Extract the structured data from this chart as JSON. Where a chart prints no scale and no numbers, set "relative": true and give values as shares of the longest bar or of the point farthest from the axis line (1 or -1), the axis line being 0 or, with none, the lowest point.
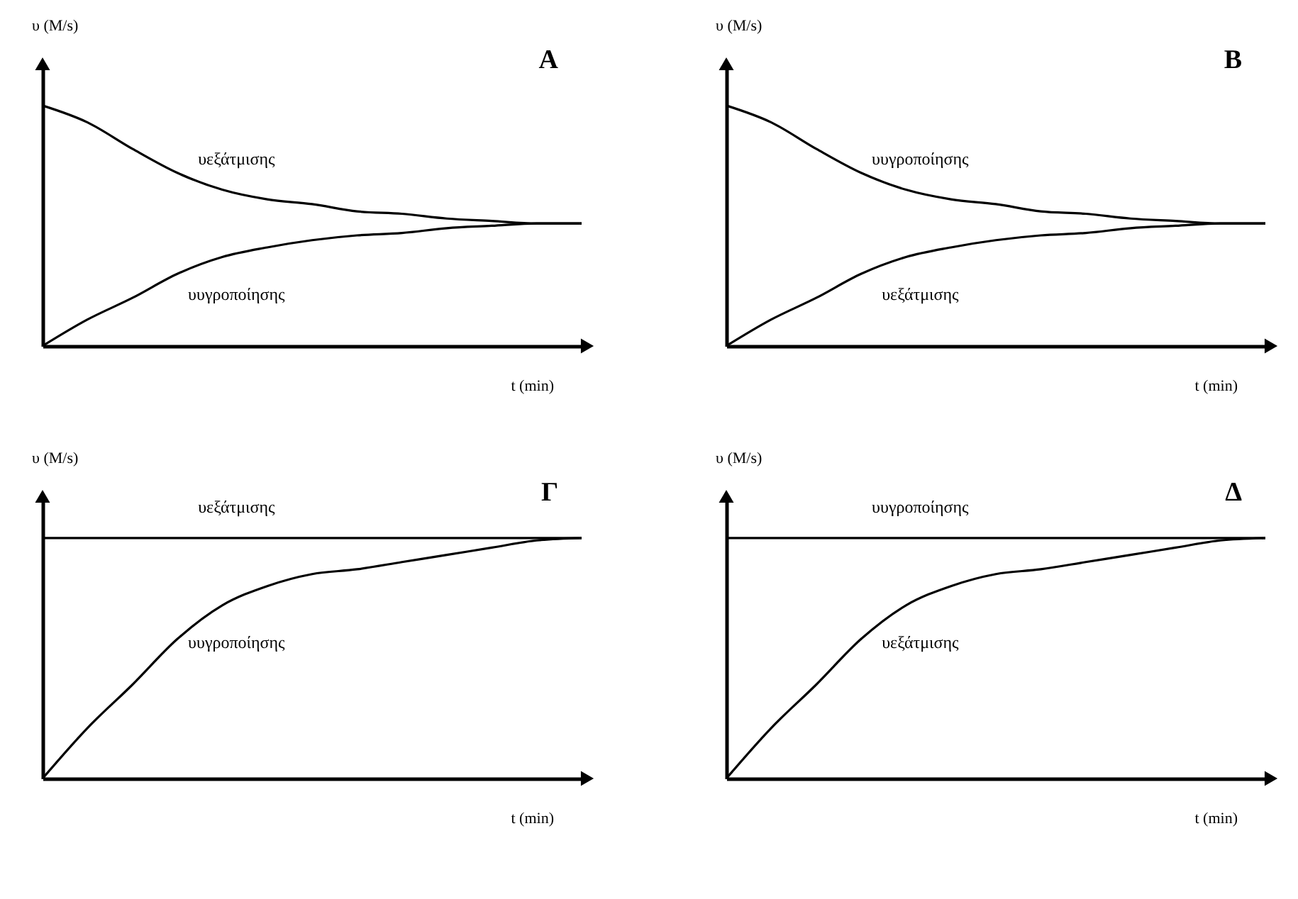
{
  "chart_data": [
    {
      "type": "line",
      "title": "A",
      "xlabel": "t (min)",
      "ylabel": "υ (M/s)",
      "relative": true,
      "categories": [
        null,
        null,
        null,
        null,
        null,
        null,
        null,
        null,
        null,
        null,
        null,
        null,
        null
      ],
      "series": [
        {
          "name": "υεξάτμισης",
          "color": "#000000",
          "values": [
            1,
            0.93,
            0.82,
            0.72,
            0.65,
            0.61,
            0.59,
            0.56,
            0.55,
            0.53,
            0.52,
            0.51,
            0.51
          ]
        },
        {
          "name": "υυγροποίησης",
          "color": "#000000",
          "values": [
            0,
            0.11,
            0.2,
            0.3,
            0.37,
            0.41,
            0.44,
            0.46,
            0.47,
            0.49,
            0.5,
            0.51,
            0.51
          ]
        }
      ]
    },
    {
      "type": "line",
      "title": "B",
      "xlabel": "t (min)",
      "ylabel": "υ (M/s)",
      "relative": true,
      "categories": [
        null,
        null,
        null,
        null,
        null,
        null,
        null,
        null,
        null,
        null,
        null,
        null,
        null
      ],
      "series": [
        {
          "name": "υυγροποίησης",
          "color": "#000000",
          "values": [
            1,
            0.93,
            0.82,
            0.72,
            0.65,
            0.61,
            0.59,
            0.56,
            0.55,
            0.53,
            0.52,
            0.51,
            0.51
          ]
        },
        {
          "name": "υεξάτμισης",
          "color": "#000000",
          "values": [
            0,
            0.11,
            0.2,
            0.3,
            0.37,
            0.41,
            0.44,
            0.46,
            0.47,
            0.49,
            0.5,
            0.51,
            0.51
          ]
        }
      ]
    },
    {
      "type": "line",
      "title": "Γ",
      "xlabel": "t (min)",
      "ylabel": "υ (M/s)",
      "relative": true,
      "categories": [
        null,
        null,
        null,
        null,
        null,
        null,
        null,
        null,
        null,
        null,
        null,
        null,
        null
      ],
      "series": [
        {
          "name": "υεξάτμισης",
          "color": "#000000",
          "values": [
            1,
            1,
            1,
            1,
            1,
            1,
            1,
            1,
            1,
            1,
            1,
            1,
            1
          ]
        },
        {
          "name": "υυγροποίησης",
          "color": "#000000",
          "values": [
            0,
            0.21,
            0.39,
            0.58,
            0.72,
            0.8,
            0.85,
            0.87,
            0.9,
            0.93,
            0.96,
            0.99,
            1
          ]
        }
      ]
    },
    {
      "type": "line",
      "title": "Δ",
      "xlabel": "t (min)",
      "ylabel": "υ (M/s)",
      "relative": true,
      "categories": [
        null,
        null,
        null,
        null,
        null,
        null,
        null,
        null,
        null,
        null,
        null,
        null,
        null
      ],
      "series": [
        {
          "name": "υυγροποίησης",
          "color": "#000000",
          "values": [
            1,
            1,
            1,
            1,
            1,
            1,
            1,
            1,
            1,
            1,
            1,
            1,
            1
          ]
        },
        {
          "name": "υεξάτμισης",
          "color": "#000000",
          "values": [
            0,
            0.21,
            0.39,
            0.58,
            0.72,
            0.8,
            0.85,
            0.87,
            0.9,
            0.93,
            0.96,
            0.99,
            1
          ]
        }
      ]
    }
  ]
}
